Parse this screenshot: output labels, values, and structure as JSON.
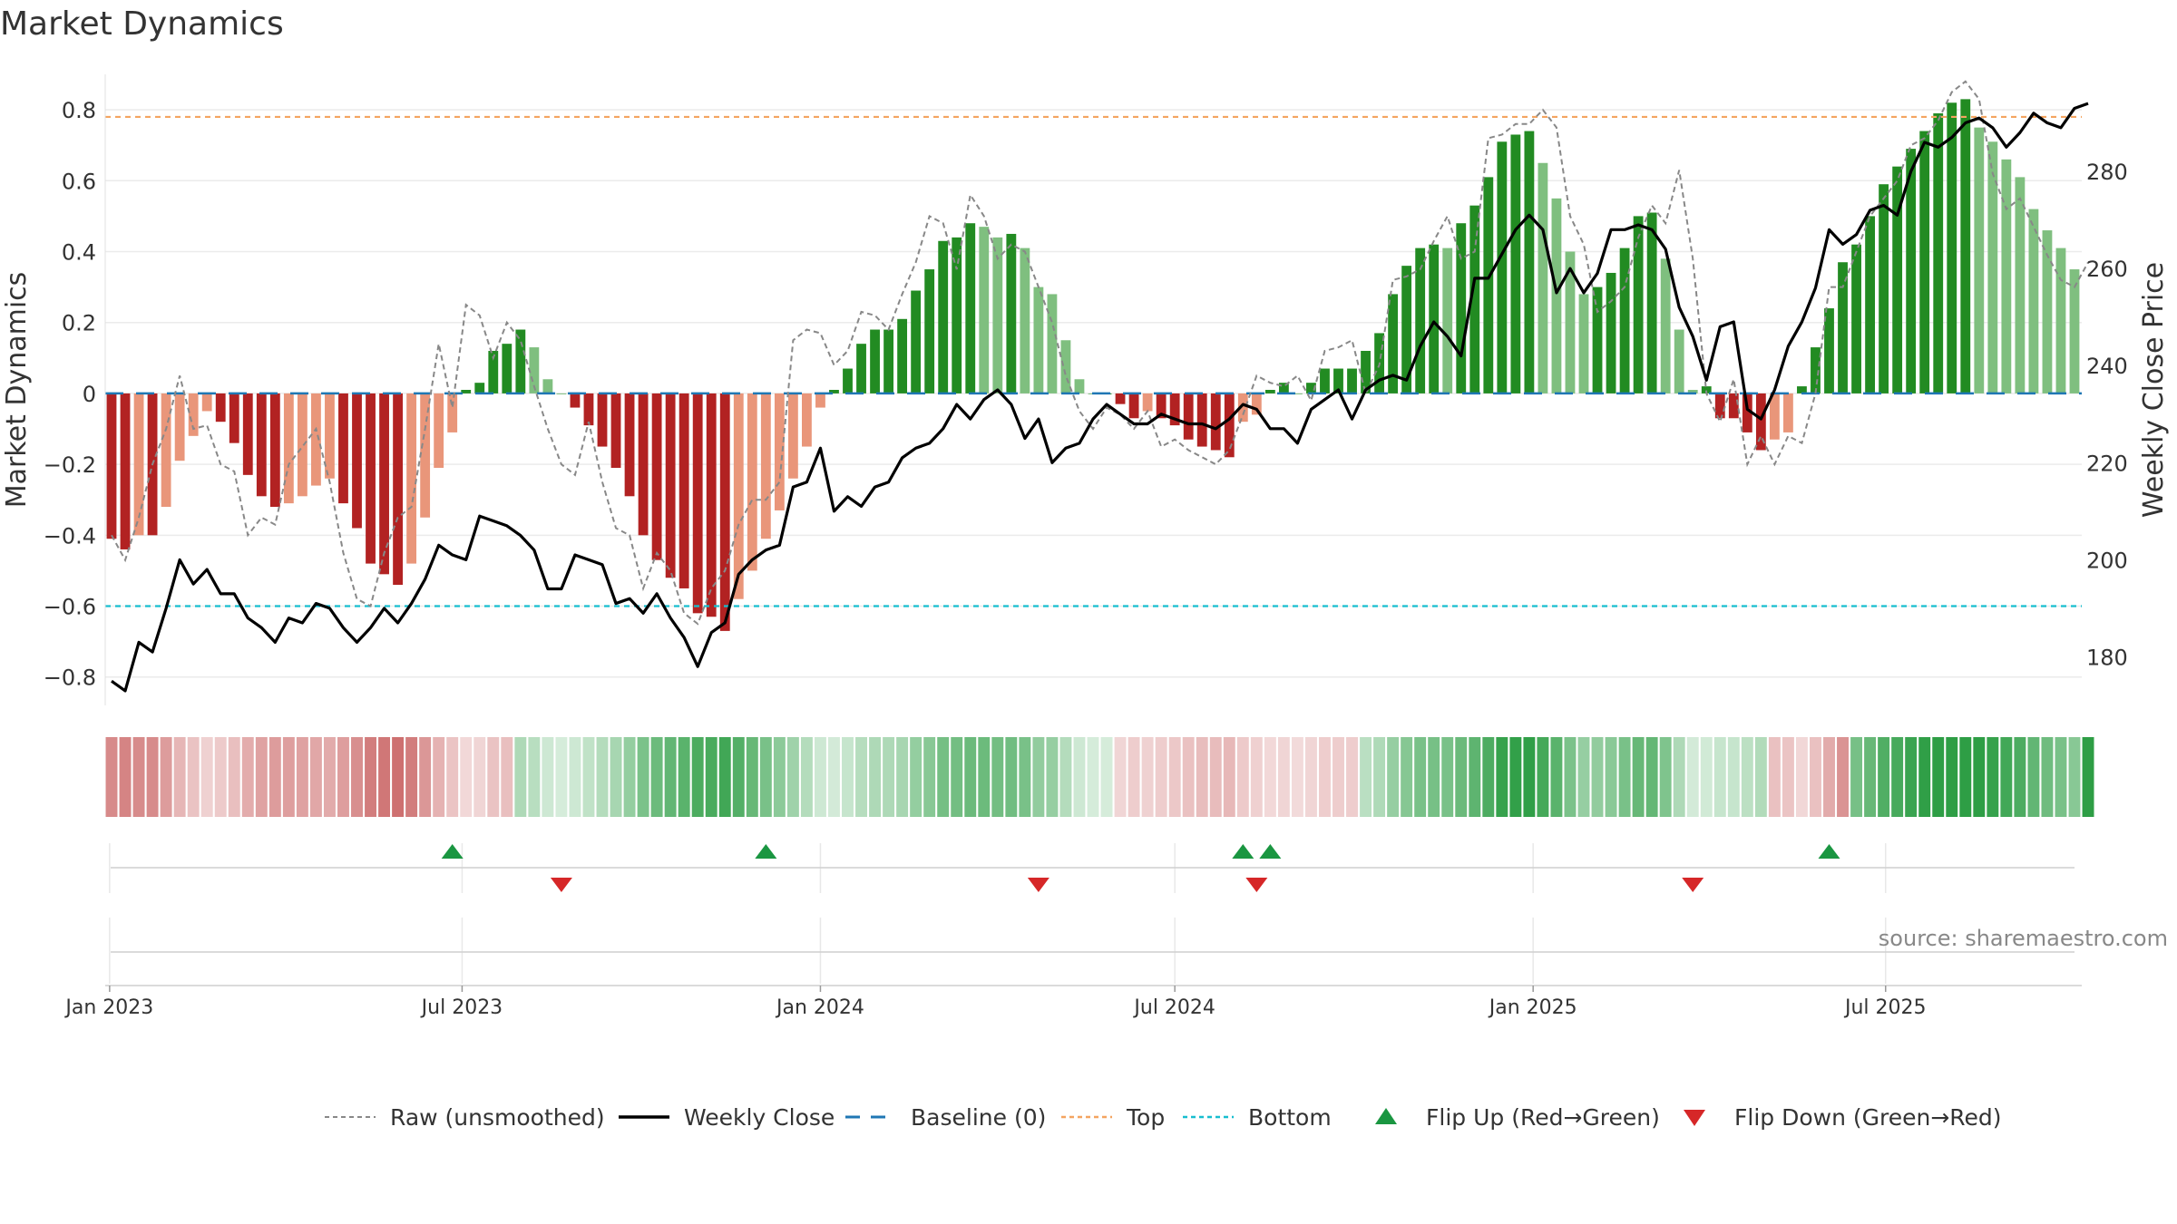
{
  "title": "Market Dynamics",
  "source": "source: sharemaestro.com",
  "colors": {
    "strong_green": "#228b22",
    "light_green": "#7fbf7f",
    "strong_red": "#b22222",
    "light_red": "#e9967a",
    "raw": "#888888",
    "close": "#000000",
    "baseline": "#1f77b4",
    "top": "#f4a460",
    "bottom": "#17becf",
    "flip_up": "#1a9641",
    "flip_down": "#d62728"
  },
  "chart_data": {
    "type": "bar",
    "start_date": "2023-01-02",
    "ylabel": "Market Dynamics",
    "y2label": "Weekly Close Price",
    "ylim": [
      -0.88,
      0.9
    ],
    "y2lim": [
      170,
      300
    ],
    "yticks": [
      0.8,
      0.6,
      0.4,
      0.2,
      0,
      -0.2,
      -0.4,
      -0.6,
      -0.8
    ],
    "ytick_labels": [
      "0.8",
      "0.6",
      "0.4",
      "0.2",
      "0",
      "−0.2",
      "−0.4",
      "−0.6",
      "−0.8"
    ],
    "y2ticks": [
      280,
      260,
      240,
      220,
      200,
      180
    ],
    "xticks": [
      {
        "date": "2023-01-01",
        "label": "Jan 2023"
      },
      {
        "date": "2023-07-01",
        "label": "Jul 2023"
      },
      {
        "date": "2024-01-01",
        "label": "Jan 2024"
      },
      {
        "date": "2024-07-01",
        "label": "Jul 2024"
      },
      {
        "date": "2025-01-01",
        "label": "Jan 2025"
      },
      {
        "date": "2025-07-01",
        "label": "Jul 2025"
      }
    ],
    "top_level": 0.78,
    "bottom_level": -0.6,
    "baseline": 0,
    "smoothed": [
      -0.41,
      -0.44,
      -0.4,
      -0.4,
      -0.32,
      -0.19,
      -0.12,
      -0.05,
      -0.08,
      -0.14,
      -0.23,
      -0.29,
      -0.32,
      -0.31,
      -0.29,
      -0.26,
      -0.24,
      -0.31,
      -0.38,
      -0.48,
      -0.51,
      -0.54,
      -0.48,
      -0.35,
      -0.21,
      -0.11,
      0.01,
      0.03,
      0.12,
      0.14,
      0.18,
      0.13,
      0.04,
      0,
      -0.04,
      -0.09,
      -0.15,
      -0.21,
      -0.29,
      -0.4,
      -0.47,
      -0.52,
      -0.55,
      -0.62,
      -0.63,
      -0.67,
      -0.58,
      -0.5,
      -0.41,
      -0.33,
      -0.24,
      -0.15,
      -0.04,
      0.01,
      0.07,
      0.14,
      0.18,
      0.18,
      0.21,
      0.29,
      0.35,
      0.43,
      0.44,
      0.48,
      0.47,
      0.44,
      0.45,
      0.41,
      0.3,
      0.28,
      0.15,
      0.04,
      0,
      0,
      -0.03,
      -0.07,
      -0.05,
      -0.07,
      -0.09,
      -0.13,
      -0.15,
      -0.16,
      -0.18,
      -0.08,
      -0.06,
      0.01,
      0.03,
      0,
      0.03,
      0.07,
      0.07,
      0.07,
      0.12,
      0.17,
      0.28,
      0.36,
      0.41,
      0.42,
      0.41,
      0.48,
      0.53,
      0.61,
      0.71,
      0.73,
      0.74,
      0.65,
      0.55,
      0.4,
      0.28,
      0.3,
      0.34,
      0.41,
      0.5,
      0.51,
      0.38,
      0.18,
      0.01,
      0.02,
      -0.07,
      -0.07,
      -0.11,
      -0.16,
      -0.13,
      -0.11,
      0.02,
      0.13,
      0.24,
      0.37,
      0.42,
      0.5,
      0.59,
      0.64,
      0.69,
      0.74,
      0.79,
      0.82,
      0.83,
      0.75,
      0.71,
      0.66,
      0.61,
      0.52,
      0.46,
      0.41,
      0.35
    ],
    "raw": [
      -0.4,
      -0.47,
      -0.35,
      -0.2,
      -0.1,
      0.05,
      -0.1,
      -0.09,
      -0.2,
      -0.22,
      -0.4,
      -0.35,
      -0.37,
      -0.2,
      -0.15,
      -0.1,
      -0.25,
      -0.45,
      -0.58,
      -0.6,
      -0.45,
      -0.35,
      -0.32,
      -0.1,
      0.14,
      -0.04,
      0.25,
      0.22,
      0.1,
      0.2,
      0.15,
      0.02,
      -0.1,
      -0.2,
      -0.23,
      -0.08,
      -0.25,
      -0.38,
      -0.4,
      -0.55,
      -0.45,
      -0.5,
      -0.62,
      -0.65,
      -0.55,
      -0.5,
      -0.37,
      -0.3,
      -0.3,
      -0.25,
      0.15,
      0.18,
      0.17,
      0.08,
      0.12,
      0.23,
      0.22,
      0.18,
      0.28,
      0.37,
      0.5,
      0.48,
      0.35,
      0.56,
      0.5,
      0.38,
      0.42,
      0.4,
      0.3,
      0.2,
      0.05,
      -0.05,
      -0.1,
      -0.04,
      -0.06,
      -0.1,
      -0.05,
      -0.15,
      -0.13,
      -0.16,
      -0.18,
      -0.2,
      -0.16,
      -0.06,
      0.05,
      0.03,
      0.02,
      0.05,
      -0.02,
      0.12,
      0.13,
      0.15,
      0.0,
      0.08,
      0.32,
      0.33,
      0.35,
      0.43,
      0.5,
      0.38,
      0.4,
      0.72,
      0.73,
      0.76,
      0.76,
      0.8,
      0.75,
      0.5,
      0.42,
      0.23,
      0.26,
      0.3,
      0.44,
      0.53,
      0.48,
      0.63,
      0.38,
      0.0,
      -0.08,
      0.04,
      -0.2,
      -0.12,
      -0.2,
      -0.12,
      -0.14,
      0.0,
      0.3,
      0.3,
      0.4,
      0.5,
      0.55,
      0.6,
      0.7,
      0.72,
      0.77,
      0.85,
      0.88,
      0.83,
      0.62,
      0.52,
      0.55,
      0.47,
      0.39,
      0.32,
      0.3,
      0.37
    ],
    "close": [
      175,
      173,
      183,
      181,
      190,
      200,
      195,
      198,
      193,
      193,
      188,
      186,
      183,
      188,
      187,
      191,
      190,
      186,
      183,
      186,
      190,
      187,
      191,
      196,
      203,
      201,
      200,
      209,
      208,
      207,
      205,
      202,
      194,
      194,
      201,
      200,
      199,
      191,
      192,
      189,
      193,
      188,
      184,
      178,
      185,
      187,
      197,
      200,
      202,
      203,
      215,
      216,
      223,
      210,
      213,
      211,
      215,
      216,
      221,
      223,
      224,
      227,
      232,
      229,
      233,
      235,
      232,
      225,
      229,
      220,
      223,
      224,
      229,
      232,
      230,
      228,
      228,
      230,
      229,
      228,
      228,
      227,
      229,
      232,
      231,
      227,
      227,
      224,
      231,
      233,
      235,
      229,
      235,
      237,
      238,
      237,
      244,
      249,
      246,
      242,
      258,
      258,
      263,
      268,
      271,
      268,
      255,
      260,
      255,
      259,
      268,
      268,
      269,
      268,
      264,
      252,
      246,
      237,
      248,
      249,
      231,
      229,
      235,
      244,
      249,
      256,
      268,
      265,
      267,
      272,
      273,
      271,
      280,
      286,
      285,
      287,
      290,
      291,
      289,
      285,
      288,
      292,
      290,
      289,
      293,
      294
    ],
    "regimes": [
      "R",
      "R",
      "R",
      "R",
      "R",
      "R",
      "R",
      "R",
      "R",
      "R",
      "R",
      "R",
      "R",
      "R",
      "R",
      "R",
      "R",
      "R",
      "R",
      "R",
      "R",
      "R",
      "R",
      "R",
      "R",
      "R",
      "R",
      "R",
      "R",
      "R",
      "G",
      "G",
      "G",
      "G",
      "G",
      "G",
      "G",
      "G",
      "G",
      "G",
      "G",
      "G",
      "G",
      "G",
      "G",
      "G",
      "G",
      "G",
      "G",
      "G",
      "G",
      "G",
      "G",
      "G",
      "G",
      "G",
      "G",
      "G",
      "G",
      "G",
      "G",
      "G",
      "G",
      "G",
      "G",
      "G",
      "G",
      "G",
      "G",
      "G",
      "G",
      "G",
      "G",
      "G",
      "R",
      "R",
      "R",
      "R",
      "R",
      "R",
      "R",
      "R",
      "R",
      "R",
      "R",
      "R",
      "R",
      "R",
      "R",
      "R",
      "R",
      "R",
      "G",
      "G",
      "G",
      "G",
      "G",
      "G",
      "G",
      "G",
      "G",
      "G",
      "G",
      "G",
      "G",
      "G",
      "G",
      "G",
      "G",
      "G",
      "G",
      "G",
      "G",
      "G",
      "G",
      "G",
      "G",
      "G",
      "G",
      "G",
      "G",
      "G",
      "R",
      "R",
      "R",
      "R",
      "R",
      "R",
      "G",
      "G",
      "G",
      "G",
      "G",
      "G",
      "G",
      "G",
      "G",
      "G",
      "G",
      "G",
      "G",
      "G",
      "G",
      "G",
      "G",
      "G"
    ],
    "flip_up_dates": [
      "2023-06-26",
      "2023-12-04",
      "2024-08-05",
      "2024-08-19",
      "2025-06-02"
    ],
    "flip_down_dates": [
      "2023-08-21",
      "2024-04-22",
      "2024-08-12",
      "2025-03-24"
    ],
    "legend": [
      {
        "key": "raw",
        "label": "Raw (unsmoothed)"
      },
      {
        "key": "close",
        "label": "Weekly Close"
      },
      {
        "key": "baseline",
        "label": "Baseline (0)"
      },
      {
        "key": "top",
        "label": "Top"
      },
      {
        "key": "bottom",
        "label": "Bottom"
      },
      {
        "key": "flip_up",
        "label": "Flip Up (Red→Green)"
      },
      {
        "key": "flip_down",
        "label": "Flip Down (Green→Red)"
      }
    ]
  }
}
